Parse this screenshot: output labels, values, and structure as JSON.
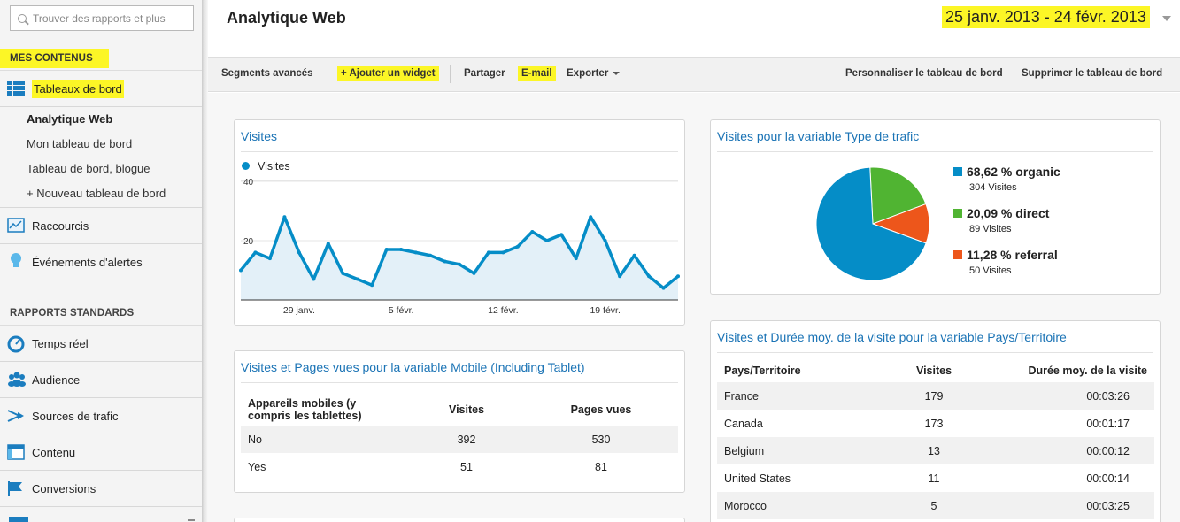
{
  "sidebar": {
    "search_placeholder": "Trouver des rapports et plus",
    "mes_contenus": "MES CONTENUS",
    "tableaux": "Tableaux de bord",
    "sub_items": [
      "Analytique Web",
      "Mon tableau de bord",
      "Tableau de bord, blogue",
      "+ Nouveau tableau de bord"
    ],
    "raccourcis": "Raccourcis",
    "evenements": "Événements d'alertes",
    "rapports_standards": "RAPPORTS STANDARDS",
    "temps_reel": "Temps réel",
    "audience": "Audience",
    "sources": "Sources de trafic",
    "contenu": "Contenu",
    "conversions": "Conversions"
  },
  "header": {
    "title": "Analytique Web",
    "date_range": "25 janv. 2013 - 24 févr. 2013"
  },
  "toolbar": {
    "segments": "Segments avancés",
    "add_widget": "+ Ajouter un widget",
    "share": "Partager",
    "email": "E-mail",
    "export": "Exporter",
    "customize": "Personnaliser le tableau de bord",
    "delete": "Supprimer le tableau de bord"
  },
  "visits_widget": {
    "title": "Visites",
    "legend": "Visites",
    "y_ticks": [
      "40",
      "20"
    ],
    "x_ticks": [
      "29 janv.",
      "5 févr.",
      "12 févr.",
      "19 févr."
    ]
  },
  "chart_data": [
    {
      "type": "area",
      "title": "Visites",
      "series": [
        {
          "name": "Visites",
          "values": [
            10,
            16,
            14,
            28,
            16,
            7,
            19,
            9,
            7,
            5,
            17,
            17,
            16,
            15,
            13,
            12,
            9,
            16,
            16,
            18,
            23,
            20,
            22,
            14,
            28,
            20,
            8,
            15,
            8,
            4,
            8
          ]
        }
      ],
      "ylim": [
        0,
        40
      ],
      "y_ticks": [
        20,
        40
      ],
      "x_ticks": [
        "29 janv.",
        "5 févr.",
        "12 févr.",
        "19 févr."
      ]
    },
    {
      "type": "pie",
      "title": "Visites pour la variable Type de trafic",
      "slices": [
        {
          "label": "organic",
          "percent": 68.62,
          "visits": 304,
          "color": "#058dc7"
        },
        {
          "label": "direct",
          "percent": 20.09,
          "visits": 89,
          "color": "#50b432"
        },
        {
          "label": "referral",
          "percent": 11.28,
          "visits": 50,
          "color": "#ed561b"
        }
      ]
    }
  ],
  "traffic_widget": {
    "title": "Visites pour la variable Type de trafic",
    "legend": [
      {
        "pct": "68,62 % organic",
        "visits": "304 Visites",
        "color": "#058dc7"
      },
      {
        "pct": "20,09 % direct",
        "visits": "89 Visites",
        "color": "#50b432"
      },
      {
        "pct": "11,28 % referral",
        "visits": "50 Visites",
        "color": "#ed561b"
      }
    ]
  },
  "mobile_widget": {
    "title": "Visites et Pages vues pour la variable Mobile (Including Tablet)",
    "headers": [
      "Appareils mobiles (y compris les tablettes)",
      "Visites",
      "Pages vues"
    ],
    "rows": [
      [
        "No",
        "392",
        "530"
      ],
      [
        "Yes",
        "51",
        "81"
      ]
    ]
  },
  "country_widget": {
    "title": "Visites et Durée moy. de la visite pour la variable Pays/Territoire",
    "headers": [
      "Pays/Territoire",
      "Visites",
      "Durée moy. de la visite"
    ],
    "rows": [
      [
        "France",
        "179",
        "00:03:26"
      ],
      [
        "Canada",
        "173",
        "00:01:17"
      ],
      [
        "Belgium",
        "13",
        "00:00:12"
      ],
      [
        "United States",
        "11",
        "00:00:14"
      ],
      [
        "Morocco",
        "5",
        "00:03:25"
      ]
    ]
  }
}
